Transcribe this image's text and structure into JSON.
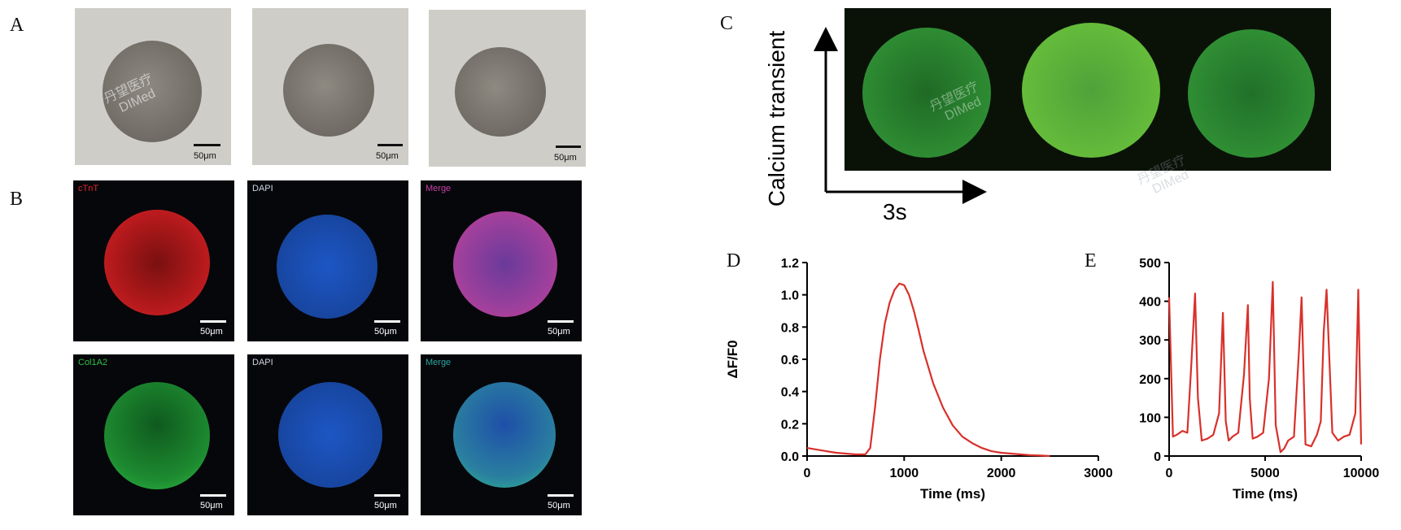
{
  "panels": {
    "A": {
      "label": "A",
      "scale_text": "50μm"
    },
    "B": {
      "label": "B",
      "scale_text": "50μm",
      "row1": [
        "cTnT",
        "DAPI",
        "Merge"
      ],
      "row2": [
        "Col1A2",
        "DAPI",
        "Merge"
      ]
    },
    "C": {
      "label": "C",
      "y_label": "Calcium transient",
      "x_label": "3s"
    },
    "D": {
      "label": "D"
    },
    "E": {
      "label": "E"
    }
  },
  "watermark": {
    "text_cn": "丹望医疗",
    "text_en": "DIMed"
  },
  "colors": {
    "trace": "#d9302a",
    "red_stain": "#e0262b",
    "blue_stain": "#1d56c4",
    "green_stain": "#2fbf45",
    "magenta_merge": "#c83fa8",
    "cyan_merge": "#2aa6a0"
  },
  "chart_data": [
    {
      "type": "line",
      "panel": "D",
      "xlabel": "Time (ms)",
      "ylabel": "ΔF/F0",
      "xlim": [
        0,
        3000
      ],
      "ylim": [
        0,
        1.2
      ],
      "xticks": [
        "0",
        "1000",
        "2000",
        "3000"
      ],
      "yticks": [
        "0.0",
        "0.2",
        "0.4",
        "0.6",
        "0.8",
        "1.0",
        "1.2"
      ],
      "x": [
        0,
        100,
        200,
        300,
        400,
        500,
        600,
        650,
        700,
        750,
        800,
        850,
        900,
        950,
        1000,
        1050,
        1100,
        1150,
        1200,
        1300,
        1400,
        1500,
        1600,
        1700,
        1800,
        1900,
        2000,
        2100,
        2200,
        2300,
        2400,
        2500
      ],
      "y": [
        0.05,
        0.04,
        0.03,
        0.02,
        0.015,
        0.01,
        0.01,
        0.05,
        0.3,
        0.6,
        0.82,
        0.95,
        1.03,
        1.07,
        1.06,
        1.0,
        0.9,
        0.78,
        0.65,
        0.45,
        0.3,
        0.19,
        0.12,
        0.08,
        0.05,
        0.03,
        0.02,
        0.015,
        0.01,
        0.005,
        0.003,
        0.0
      ]
    },
    {
      "type": "line",
      "panel": "E",
      "xlabel": "Time (ms)",
      "ylabel": "",
      "xlim": [
        0,
        10000
      ],
      "ylim": [
        0,
        500
      ],
      "xticks": [
        "0",
        "5000",
        "10000"
      ],
      "yticks": [
        "0",
        "100",
        "200",
        "300",
        "400",
        "500"
      ],
      "x": [
        0,
        200,
        400,
        700,
        950,
        1150,
        1350,
        1500,
        1700,
        2000,
        2300,
        2600,
        2800,
        2950,
        3100,
        3300,
        3600,
        3900,
        4100,
        4200,
        4350,
        4600,
        4900,
        5200,
        5400,
        5550,
        5800,
        6000,
        6200,
        6500,
        6750,
        6900,
        7100,
        7400,
        7700,
        7900,
        8050,
        8200,
        8500,
        8800,
        9100,
        9400,
        9700,
        9850,
        10000
      ],
      "y": [
        410,
        50,
        55,
        65,
        60,
        230,
        420,
        150,
        40,
        45,
        55,
        110,
        370,
        90,
        40,
        50,
        60,
        210,
        390,
        150,
        45,
        50,
        60,
        200,
        450,
        80,
        10,
        20,
        40,
        50,
        260,
        410,
        30,
        25,
        55,
        90,
        320,
        430,
        60,
        40,
        50,
        55,
        110,
        430,
        30
      ]
    }
  ]
}
